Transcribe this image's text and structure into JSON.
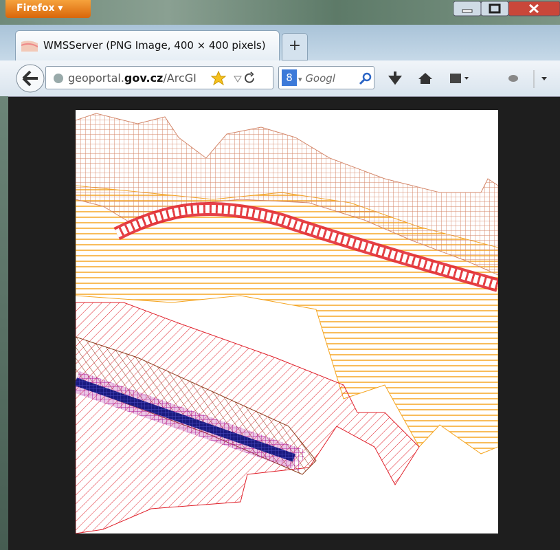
{
  "window": {
    "app_button": "Firefox"
  },
  "tab": {
    "title": "WMSServer (PNG Image, 400 × 400 pixels)",
    "new_tab": "+"
  },
  "navbar": {
    "url_host": "geoportal.",
    "url_domain": "gov.cz",
    "url_path": "/ArcGI",
    "search_engine": "8",
    "search_placeholder": "Googl"
  }
}
